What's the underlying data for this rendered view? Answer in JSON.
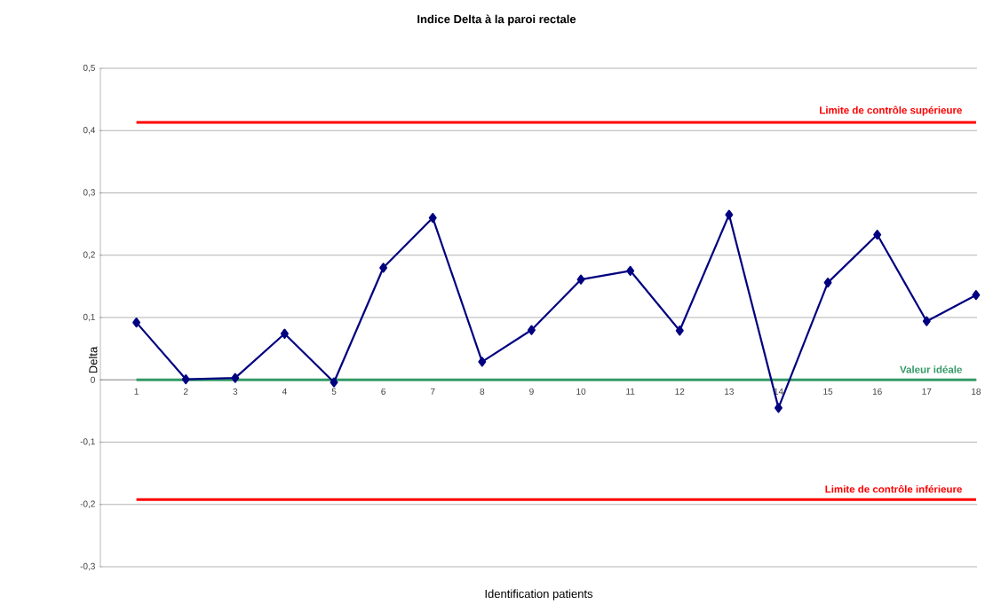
{
  "chart_data": {
    "type": "line",
    "title": "Indice Delta à la paroi rectale",
    "xlabel": "Identification patients",
    "ylabel": "Delta",
    "categories": [
      "1",
      "2",
      "3",
      "4",
      "5",
      "6",
      "7",
      "8",
      "9",
      "10",
      "11",
      "12",
      "13",
      "14",
      "15",
      "16",
      "17",
      "18"
    ],
    "series": [
      {
        "color": "#000080",
        "values": [
          0.092,
          0.001,
          0.003,
          0.074,
          -0.004,
          0.18,
          0.26,
          0.029,
          0.08,
          0.161,
          0.175,
          0.079,
          0.265,
          -0.045,
          0.156,
          0.233,
          0.094,
          0.136
        ]
      }
    ],
    "ylim": [
      -0.3,
      0.5
    ],
    "yticks": [
      {
        "value": -0.3,
        "label": "-0,3"
      },
      {
        "value": -0.2,
        "label": "-0,2"
      },
      {
        "value": -0.1,
        "label": "-0,1"
      },
      0,
      {
        "value": 0.1,
        "label": "0,1"
      },
      {
        "value": 0.2,
        "label": "0,2"
      },
      {
        "value": 0.3,
        "label": "0,3"
      },
      {
        "value": 0.4,
        "label": "0,4"
      },
      {
        "value": 0.5,
        "label": "0,5"
      }
    ],
    "ref_lines": [
      {
        "axis": "y",
        "value": 0.413,
        "label": "Limite de contrôle supérieure",
        "color": "#ff0000"
      },
      {
        "axis": "y",
        "value": 0,
        "label": "Valeur idéale",
        "color": "#339966"
      },
      {
        "axis": "y",
        "value": -0.192,
        "label": "Limite de contrôle inférieure",
        "color": "#ff0000"
      }
    ],
    "grid": "y",
    "marker": "diamond",
    "line_style": "solid"
  }
}
